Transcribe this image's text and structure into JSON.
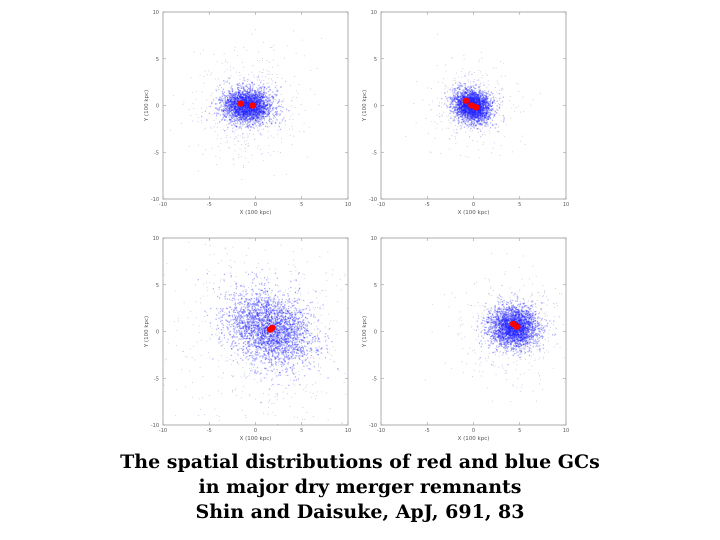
{
  "colors": {
    "blue_gc": "#1f1fff",
    "red_gc": "#ff0000",
    "frame": "#999999",
    "field": "#b9b9d9"
  },
  "caption": {
    "line1": "The spatial distributions of red and blue GCs",
    "line2": "in major dry merger remnants",
    "line3": "Shin and Daisuke, ApJ, 691, 83"
  },
  "chart_data": [
    {
      "type": "scatter",
      "title": "",
      "xlabel": "X (100 kpc)",
      "ylabel": "Y (100 kpc)",
      "xlim": [
        -10,
        10
      ],
      "ylim": [
        -10,
        10
      ],
      "xticks": [
        "-10",
        "-5",
        "0",
        "5",
        "10"
      ],
      "yticks": [
        "-10",
        "-5",
        "0",
        "5",
        "10"
      ],
      "series": [
        {
          "color": "blue",
          "center": [
            -1.0,
            0.0
          ],
          "sigma": [
            1.3,
            0.9
          ],
          "rotation_deg": 0
        },
        {
          "color": "red",
          "points": [
            [
              -1.6,
              0.2
            ],
            [
              -0.3,
              0.0
            ]
          ]
        }
      ]
    },
    {
      "type": "scatter",
      "title": "",
      "xlabel": "X (100 kpc)",
      "ylabel": "Y (100 kpc)",
      "xlim": [
        -10,
        10
      ],
      "ylim": [
        -10,
        10
      ],
      "xticks": [
        "-10",
        "-5",
        "0",
        "5",
        "10"
      ],
      "yticks": [
        "-10",
        "-5",
        "0",
        "5",
        "10"
      ],
      "series": [
        {
          "color": "blue",
          "center": [
            -0.2,
            0.0
          ],
          "sigma": [
            1.0,
            0.8
          ],
          "rotation_deg": -25
        },
        {
          "color": "red",
          "points": [
            [
              -0.8,
              0.5
            ],
            [
              -0.2,
              0.0
            ],
            [
              0.3,
              -0.2
            ]
          ]
        }
      ]
    },
    {
      "type": "scatter",
      "title": "",
      "xlabel": "X (100 kpc)",
      "ylabel": "Y (100 kpc)",
      "xlim": [
        -10,
        10
      ],
      "ylim": [
        -10,
        10
      ],
      "xticks": [
        "-10",
        "-5",
        "0",
        "5",
        "10"
      ],
      "yticks": [
        "-10",
        "-5",
        "0",
        "5",
        "10"
      ],
      "series": [
        {
          "color": "blue",
          "center": [
            1.5,
            0.3
          ],
          "sigma": [
            2.4,
            1.8
          ],
          "rotation_deg": -30
        },
        {
          "color": "red",
          "points": [
            [
              1.8,
              0.4
            ],
            [
              1.6,
              0.2
            ]
          ]
        }
      ]
    },
    {
      "type": "scatter",
      "title": "",
      "xlabel": "X (100 kpc)",
      "ylabel": "Y (100 kpc)",
      "xlim": [
        -10,
        10
      ],
      "ylim": [
        -10,
        10
      ],
      "xticks": [
        "-10",
        "-5",
        "0",
        "5",
        "10"
      ],
      "yticks": [
        "-10",
        "-5",
        "0",
        "5",
        "10"
      ],
      "series": [
        {
          "color": "blue",
          "center": [
            4.3,
            0.5
          ],
          "sigma": [
            1.3,
            1.1
          ],
          "rotation_deg": 0
        },
        {
          "color": "red",
          "points": [
            [
              4.3,
              0.8
            ],
            [
              4.7,
              0.5
            ]
          ]
        }
      ]
    }
  ]
}
